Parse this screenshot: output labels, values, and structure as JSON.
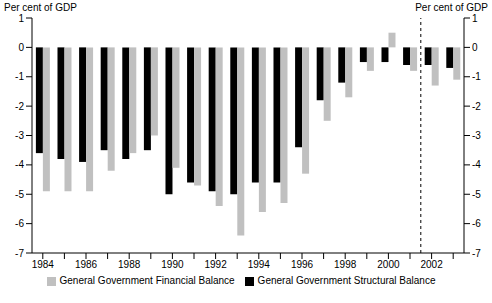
{
  "chart_data": {
    "type": "bar",
    "ylabel": "Per cent of GDP",
    "y2label": "Per cent of GDP",
    "categories": [
      "1984",
      null,
      "1986",
      null,
      "1988",
      null,
      "1990",
      null,
      "1992",
      null,
      "1994",
      null,
      "1996",
      null,
      "1998",
      null,
      "2000",
      null,
      "2002",
      null
    ],
    "series": [
      {
        "name": "General Government Structural Balance",
        "color": "#000000",
        "values": [
          -3.6,
          -3.8,
          -3.9,
          -3.5,
          -3.8,
          -3.5,
          -5.0,
          -4.6,
          -4.9,
          -5.0,
          -4.6,
          -4.6,
          -3.4,
          -1.8,
          -1.2,
          -0.5,
          -0.5,
          -0.6,
          -0.6,
          -0.7
        ]
      },
      {
        "name": "General Government Financial Balance",
        "color": "#c0c0c0",
        "values": [
          -4.9,
          -4.9,
          -4.9,
          -4.2,
          -3.6,
          -3.0,
          -4.1,
          -4.7,
          -5.4,
          -6.4,
          -5.6,
          -5.3,
          -4.3,
          -2.5,
          -1.7,
          -0.8,
          0.5,
          -0.8,
          -1.3,
          -1.1
        ]
      }
    ],
    "ylim": [
      -7,
      1
    ],
    "yticks": [
      -7,
      -6,
      -5,
      -4,
      -3,
      -2,
      -1,
      0,
      1
    ],
    "y2lim": [
      -7,
      1
    ],
    "y2ticks": [
      -7,
      -6,
      -5,
      -4,
      -3,
      -2,
      -1,
      0,
      1
    ],
    "grid": false,
    "legend": "bottom"
  }
}
